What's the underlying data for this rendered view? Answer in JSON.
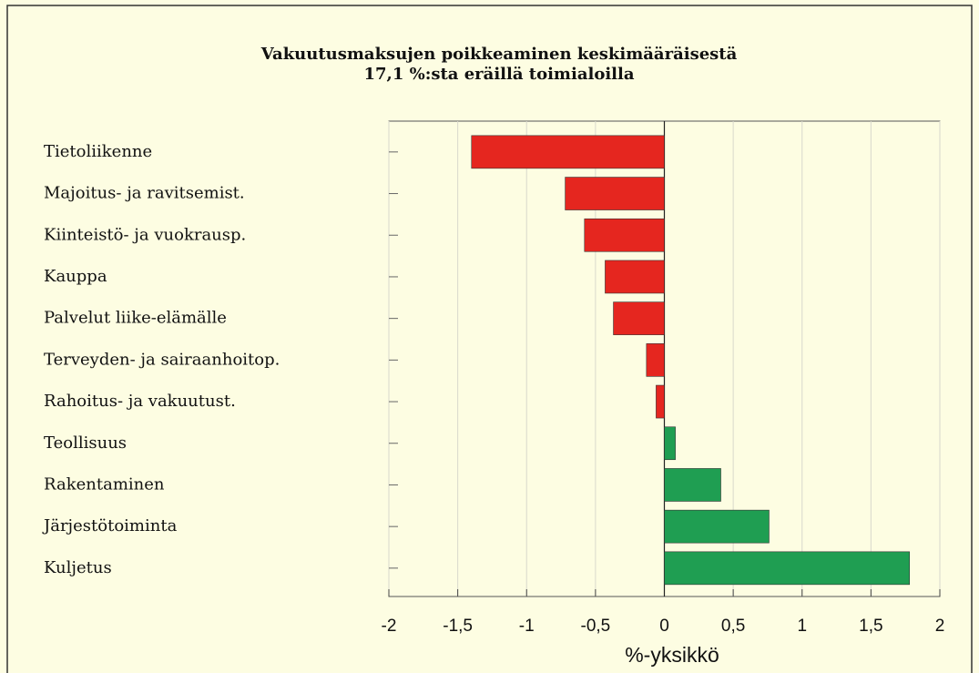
{
  "chart_data": {
    "type": "bar",
    "orientation": "horizontal",
    "title": "Vakuutusmaksujen poikkeaminen keskimääräisestä",
    "subtitle": "17,1 %:sta eräillä toimialoilla",
    "xlabel": "%-yksikkö",
    "categories": [
      "Tietoliikenne",
      "Majoitus- ja ravitsemist.",
      "Kiinteistö- ja vuokrausp.",
      "Kauppa",
      "Palvelut liike-elämälle",
      "Terveyden- ja sairaanhoitop.",
      "Rahoitus- ja vakuutust.",
      "Teollisuus",
      "Rakentaminen",
      "Järjestötoiminta",
      "Kuljetus"
    ],
    "values": [
      -1.4,
      -0.72,
      -0.58,
      -0.43,
      -0.37,
      -0.13,
      -0.06,
      0.08,
      0.41,
      0.76,
      1.78
    ],
    "negative_color": "#e5261f",
    "positive_color": "#1f9e52",
    "xlim": [
      -2,
      2
    ],
    "xticks": [
      -2,
      {
        "value": -1.5,
        "label": "-1,5"
      },
      -1,
      {
        "value": -0.5,
        "label": "-0,5"
      },
      0,
      {
        "value": 0.5,
        "label": "0,5"
      },
      1,
      {
        "value": 1.5,
        "label": "1,5"
      },
      2
    ],
    "grid": true
  }
}
